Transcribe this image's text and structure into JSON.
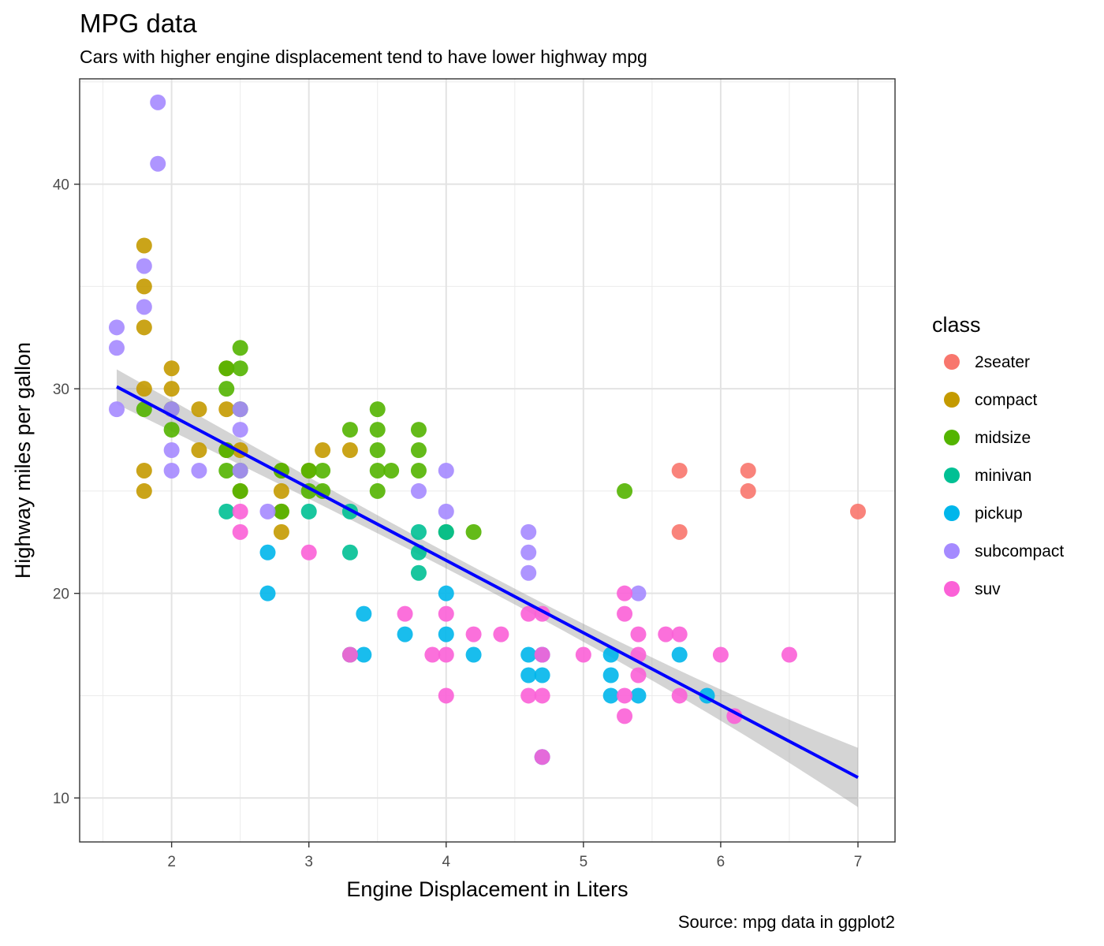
{
  "chart_data": {
    "type": "scatter",
    "title": "MPG data",
    "subtitle": "Cars with higher engine displacement tend to have lower highway mpg",
    "xlabel": "Engine Displacement in Liters",
    "ylabel": "Highway miles per gallon",
    "caption": "Source: mpg data in ggplot2",
    "xlim": [
      1.33,
      7.27
    ],
    "ylim": [
      7.85,
      45.15
    ],
    "x_ticks": [
      2,
      3,
      4,
      5,
      6,
      7
    ],
    "y_ticks": [
      10,
      20,
      30,
      40
    ],
    "grid": true,
    "legend": {
      "title": "class",
      "position": "right",
      "entries": [
        {
          "label": "2seater",
          "color": "#F8766D"
        },
        {
          "label": "compact",
          "color": "#C49A00"
        },
        {
          "label": "midsize",
          "color": "#53B400"
        },
        {
          "label": "minivan",
          "color": "#00C094"
        },
        {
          "label": "pickup",
          "color": "#00B6EB"
        },
        {
          "label": "subcompact",
          "color": "#A58AFF"
        },
        {
          "label": "suv",
          "color": "#FB61D7"
        }
      ]
    },
    "trend_line": {
      "method": "lm",
      "color": "#0000FF",
      "x": [
        1.6,
        7.0
      ],
      "y": [
        30.1,
        11.0
      ],
      "ci_lower": [
        29.2,
        9.6
      ],
      "ci_upper": [
        30.9,
        12.5
      ]
    },
    "series": [
      {
        "name": "2seater",
        "color": "#F8766D",
        "points": [
          [
            5.7,
            26
          ],
          [
            5.7,
            23
          ],
          [
            6.2,
            26
          ],
          [
            6.2,
            25
          ],
          [
            7.0,
            24
          ]
        ]
      },
      {
        "name": "compact",
        "color": "#C49A00",
        "points": [
          [
            1.8,
            37
          ],
          [
            1.8,
            35
          ],
          [
            1.8,
            33
          ],
          [
            1.8,
            30
          ],
          [
            1.8,
            26
          ],
          [
            1.8,
            25
          ],
          [
            2.0,
            31
          ],
          [
            2.0,
            30
          ],
          [
            2.0,
            29
          ],
          [
            2.2,
            29
          ],
          [
            2.2,
            27
          ],
          [
            2.4,
            31
          ],
          [
            2.4,
            29
          ],
          [
            2.4,
            27
          ],
          [
            2.5,
            27
          ],
          [
            2.5,
            25
          ],
          [
            2.8,
            26
          ],
          [
            2.8,
            25
          ],
          [
            2.8,
            24
          ],
          [
            2.8,
            23
          ],
          [
            3.0,
            26
          ],
          [
            3.1,
            27
          ],
          [
            3.3,
            27
          ]
        ]
      },
      {
        "name": "midsize",
        "color": "#53B400",
        "points": [
          [
            1.8,
            29
          ],
          [
            2.0,
            29
          ],
          [
            2.0,
            28
          ],
          [
            2.4,
            31
          ],
          [
            2.4,
            30
          ],
          [
            2.4,
            27
          ],
          [
            2.4,
            26
          ],
          [
            2.5,
            32
          ],
          [
            2.5,
            31
          ],
          [
            2.5,
            29
          ],
          [
            2.5,
            26
          ],
          [
            2.5,
            25
          ],
          [
            2.8,
            26
          ],
          [
            2.8,
            24
          ],
          [
            3.0,
            26
          ],
          [
            3.0,
            25
          ],
          [
            3.1,
            26
          ],
          [
            3.1,
            25
          ],
          [
            3.3,
            28
          ],
          [
            3.5,
            29
          ],
          [
            3.5,
            28
          ],
          [
            3.5,
            27
          ],
          [
            3.5,
            26
          ],
          [
            3.5,
            25
          ],
          [
            3.6,
            26
          ],
          [
            3.8,
            28
          ],
          [
            3.8,
            27
          ],
          [
            3.8,
            26
          ],
          [
            4.0,
            23
          ],
          [
            4.2,
            23
          ],
          [
            5.3,
            25
          ]
        ]
      },
      {
        "name": "minivan",
        "color": "#00C094",
        "points": [
          [
            2.4,
            24
          ],
          [
            3.0,
            24
          ],
          [
            3.3,
            24
          ],
          [
            3.3,
            22
          ],
          [
            3.3,
            17
          ],
          [
            3.8,
            23
          ],
          [
            3.8,
            22
          ],
          [
            3.8,
            21
          ],
          [
            4.0,
            23
          ]
        ]
      },
      {
        "name": "pickup",
        "color": "#00B6EB",
        "points": [
          [
            2.7,
            22
          ],
          [
            2.7,
            20
          ],
          [
            3.4,
            19
          ],
          [
            3.4,
            17
          ],
          [
            3.7,
            18
          ],
          [
            4.0,
            20
          ],
          [
            4.0,
            18
          ],
          [
            4.2,
            17
          ],
          [
            4.6,
            17
          ],
          [
            4.6,
            16
          ],
          [
            4.7,
            17
          ],
          [
            4.7,
            16
          ],
          [
            4.7,
            12
          ],
          [
            5.2,
            17
          ],
          [
            5.2,
            16
          ],
          [
            5.2,
            15
          ],
          [
            5.4,
            15
          ],
          [
            5.7,
            17
          ],
          [
            5.9,
            15
          ]
        ]
      },
      {
        "name": "subcompact",
        "color": "#A58AFF",
        "points": [
          [
            1.6,
            33
          ],
          [
            1.6,
            32
          ],
          [
            1.6,
            29
          ],
          [
            1.8,
            36
          ],
          [
            1.8,
            34
          ],
          [
            1.9,
            44
          ],
          [
            1.9,
            41
          ],
          [
            2.0,
            29
          ],
          [
            2.0,
            27
          ],
          [
            2.0,
            26
          ],
          [
            2.2,
            26
          ],
          [
            2.5,
            29
          ],
          [
            2.5,
            28
          ],
          [
            2.5,
            26
          ],
          [
            2.7,
            24
          ],
          [
            3.8,
            25
          ],
          [
            4.0,
            26
          ],
          [
            4.0,
            24
          ],
          [
            4.6,
            23
          ],
          [
            4.6,
            22
          ],
          [
            4.6,
            21
          ],
          [
            5.4,
            20
          ]
        ]
      },
      {
        "name": "suv",
        "color": "#FB61D7",
        "points": [
          [
            2.5,
            24
          ],
          [
            2.5,
            23
          ],
          [
            3.0,
            22
          ],
          [
            3.3,
            17
          ],
          [
            3.7,
            19
          ],
          [
            3.9,
            17
          ],
          [
            4.0,
            19
          ],
          [
            4.0,
            17
          ],
          [
            4.0,
            15
          ],
          [
            4.2,
            18
          ],
          [
            4.4,
            18
          ],
          [
            4.6,
            19
          ],
          [
            4.6,
            15
          ],
          [
            4.7,
            19
          ],
          [
            4.7,
            17
          ],
          [
            4.7,
            15
          ],
          [
            4.7,
            12
          ],
          [
            5.0,
            17
          ],
          [
            5.3,
            20
          ],
          [
            5.3,
            19
          ],
          [
            5.3,
            15
          ],
          [
            5.3,
            14
          ],
          [
            5.4,
            18
          ],
          [
            5.4,
            17
          ],
          [
            5.4,
            16
          ],
          [
            5.6,
            18
          ],
          [
            5.7,
            18
          ],
          [
            5.7,
            15
          ],
          [
            6.0,
            17
          ],
          [
            6.1,
            14
          ],
          [
            6.5,
            17
          ]
        ]
      }
    ]
  }
}
